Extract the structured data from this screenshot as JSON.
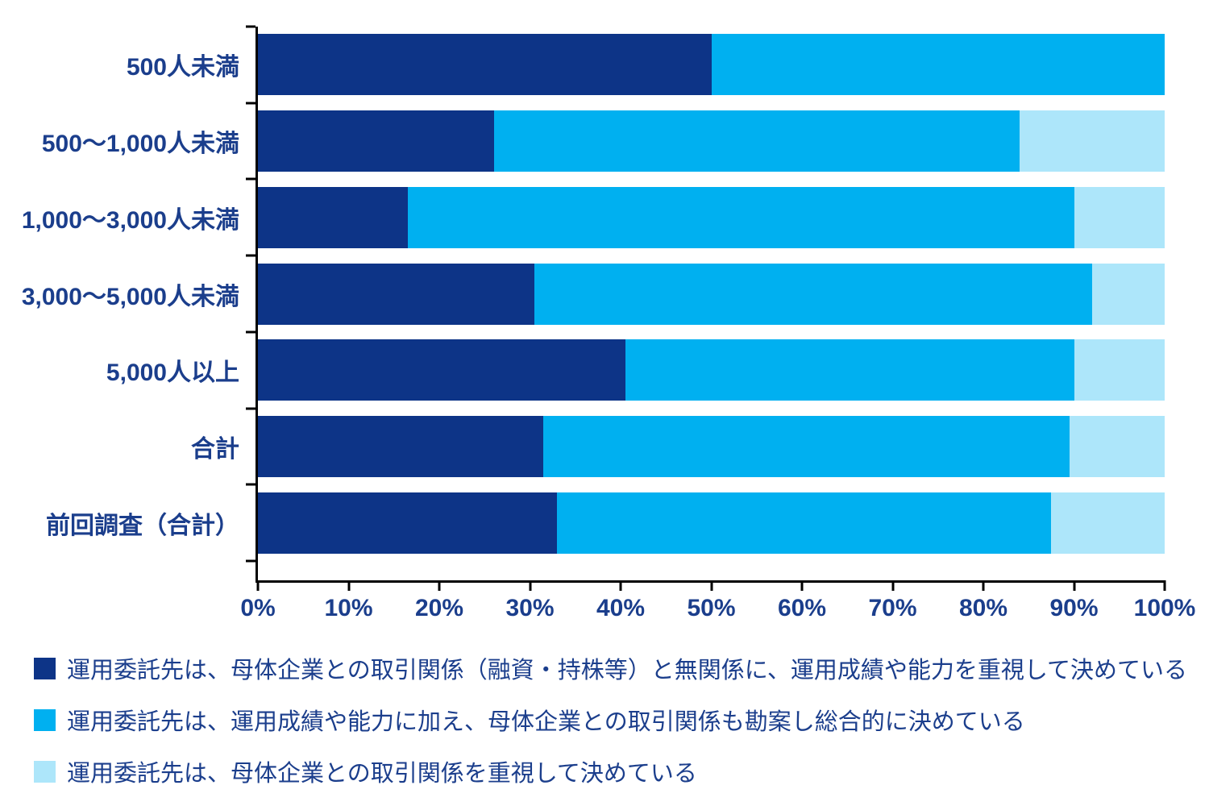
{
  "chart_data": {
    "type": "bar",
    "orientation": "horizontal",
    "stacked": true,
    "unit": "%",
    "categories": [
      "500人未満",
      "500〜1,000人未満",
      "1,000〜3,000人未満",
      "3,000〜5,000人未満",
      "5,000人以上",
      "合計",
      "前回調査（合計）"
    ],
    "series": [
      {
        "name": "運用委託先は、母体企業との取引関係（融資・持株等）と無関係に、運用成績や能力を重視して決めている",
        "color": "#0d3487",
        "values": [
          50,
          26,
          16.5,
          30.5,
          40.5,
          31.5,
          33
        ]
      },
      {
        "name": "運用委託先は、運用成績や能力に加え、母体企業との取引関係も勘案し総合的に決めている",
        "color": "#00b0f0",
        "values": [
          50,
          58,
          73.5,
          61.5,
          49.5,
          58,
          54.5
        ]
      },
      {
        "name": "運用委託先は、母体企業との取引関係を重視して決めている",
        "color": "#ade6fa",
        "values": [
          0,
          16,
          10,
          8,
          10,
          10.5,
          12.5
        ]
      }
    ],
    "x_ticks": [
      "0%",
      "10%",
      "20%",
      "30%",
      "40%",
      "50%",
      "60%",
      "70%",
      "80%",
      "90%",
      "100%"
    ],
    "xlim": [
      0,
      100
    ],
    "grid": false,
    "legend_position": "bottom",
    "axis_color": "#000000",
    "label_color": "#1b3e8c"
  }
}
